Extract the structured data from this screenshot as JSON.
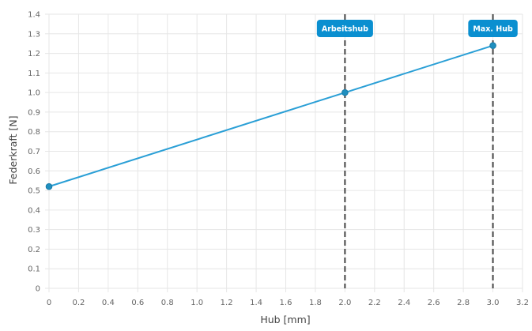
{
  "chart_data": {
    "type": "line",
    "xlabel": "Hub [mm]",
    "ylabel": "Federkraft [N]",
    "xlim": [
      0,
      3.2
    ],
    "ylim": [
      0,
      1.4
    ],
    "grid": true,
    "x_ticks": [
      "0",
      "0.2",
      "0.4",
      "0.6",
      "0.8",
      "1.0",
      "1.2",
      "1.4",
      "1.6",
      "1.8",
      "2.0",
      "2.2",
      "2.4",
      "2.6",
      "2.8",
      "3.0",
      "3.2"
    ],
    "y_ticks": [
      "0",
      "0.1",
      "0.2",
      "0.3",
      "0.4",
      "0.5",
      "0.6",
      "0.7",
      "0.8",
      "0.9",
      "1.0",
      "1.1",
      "1.2",
      "1.3",
      "1.4"
    ],
    "series": [
      {
        "x": [
          0,
          2.0,
          3.0
        ],
        "y": [
          0.52,
          1.0,
          1.24
        ],
        "color": "#2a9fd6"
      }
    ],
    "annotations": [
      {
        "label": "Arbeitshub",
        "x": 2.0,
        "style": "dashed-vertical",
        "color": "#0a8fd0"
      },
      {
        "label": "Max. Hub",
        "x": 3.0,
        "style": "dashed-vertical",
        "color": "#0a8fd0"
      }
    ]
  }
}
